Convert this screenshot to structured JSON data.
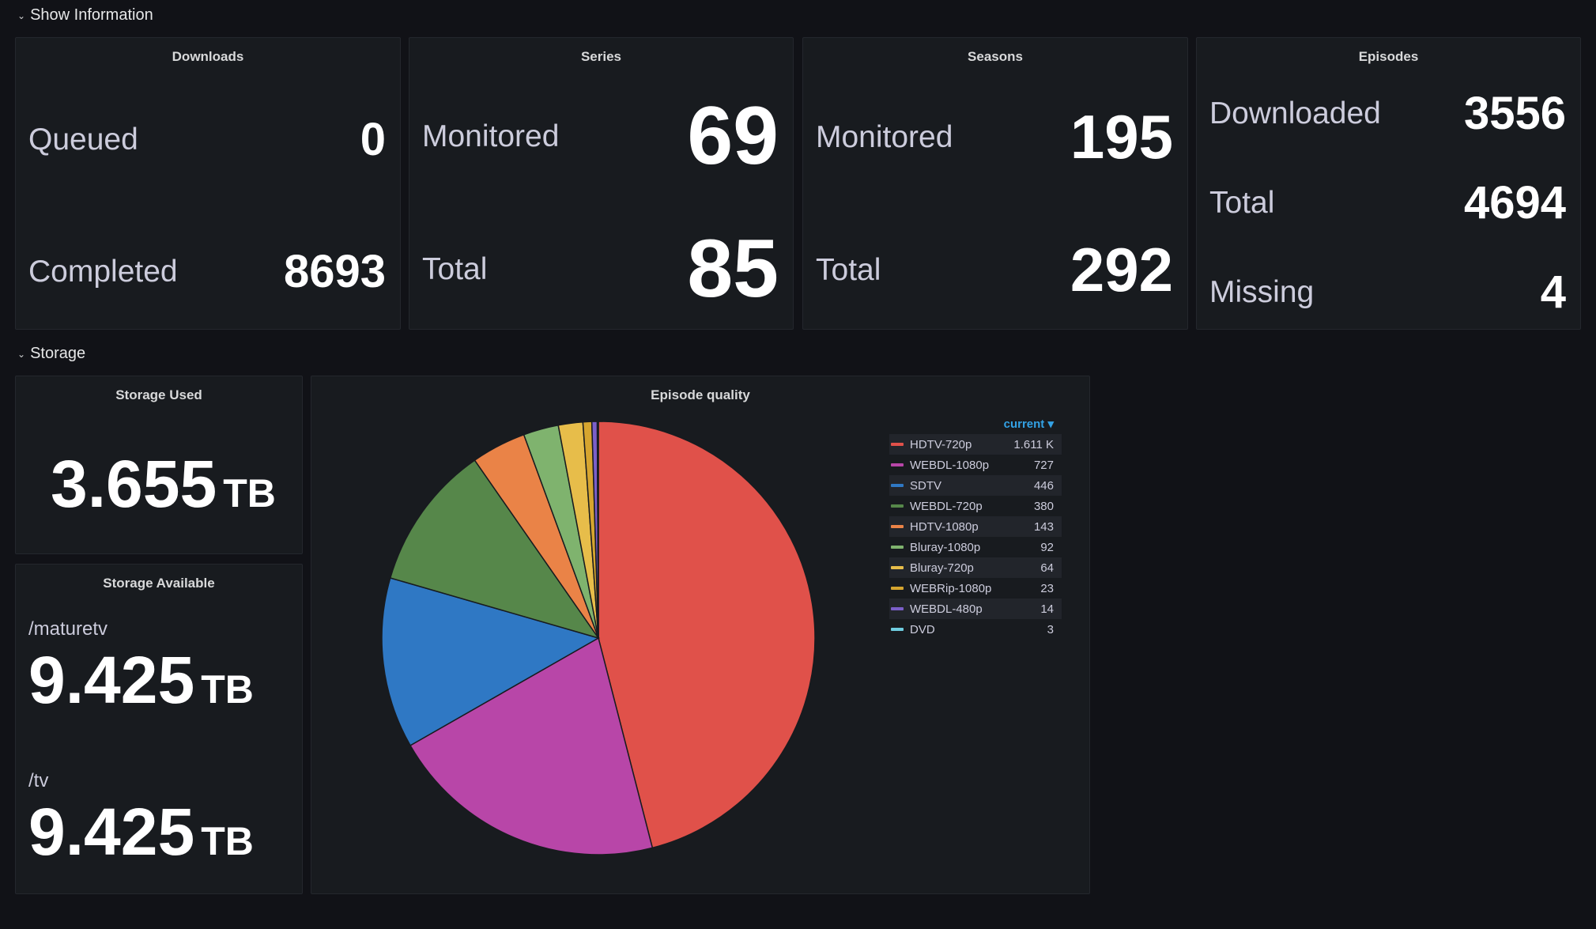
{
  "rows": {
    "show_info": {
      "title": "Show Information"
    },
    "storage": {
      "title": "Storage"
    }
  },
  "panels": {
    "downloads": {
      "title": "Downloads",
      "queued_label": "Queued",
      "queued": "0",
      "completed_label": "Completed",
      "completed": "8693"
    },
    "series": {
      "title": "Series",
      "monitored_label": "Monitored",
      "monitored": "69",
      "total_label": "Total",
      "total": "85"
    },
    "seasons": {
      "title": "Seasons",
      "monitored_label": "Monitored",
      "monitored": "195",
      "total_label": "Total",
      "total": "292"
    },
    "episodes": {
      "title": "Episodes",
      "downloaded_label": "Downloaded",
      "downloaded": "3556",
      "total_label": "Total",
      "total": "4694",
      "missing_label": "Missing",
      "missing": "4"
    },
    "storage_used": {
      "title": "Storage Used",
      "value": "3.655",
      "unit": "TB"
    },
    "storage_available": {
      "title": "Storage Available",
      "mounts": [
        {
          "path": "/maturetv",
          "value": "9.425",
          "unit": "TB"
        },
        {
          "path": "/tv",
          "value": "9.425",
          "unit": "TB"
        }
      ]
    },
    "episode_quality": {
      "title": "Episode quality",
      "legend_header": "current"
    }
  },
  "chart_data": {
    "type": "pie",
    "title": "Episode quality",
    "series": [
      {
        "name": "HDTV-720p",
        "value": 1611,
        "display": "1.611 K",
        "color": "#e0514a"
      },
      {
        "name": "WEBDL-1080p",
        "value": 727,
        "display": "727",
        "color": "#b846a8"
      },
      {
        "name": "SDTV",
        "value": 446,
        "display": "446",
        "color": "#2f78c4"
      },
      {
        "name": "WEBDL-720p",
        "value": 380,
        "display": "380",
        "color": "#56874a"
      },
      {
        "name": "HDTV-1080p",
        "value": 143,
        "display": "143",
        "color": "#ea8347"
      },
      {
        "name": "Bluray-1080p",
        "value": 92,
        "display": "92",
        "color": "#7fb36e"
      },
      {
        "name": "Bluray-720p",
        "value": 64,
        "display": "64",
        "color": "#e7bd4a"
      },
      {
        "name": "WEBRip-1080p",
        "value": 23,
        "display": "23",
        "color": "#d6a52f"
      },
      {
        "name": "WEBDL-480p",
        "value": 14,
        "display": "14",
        "color": "#7b5fc9"
      },
      {
        "name": "DVD",
        "value": 3,
        "display": "3",
        "color": "#6fcde0"
      }
    ],
    "legend_position": "right"
  }
}
